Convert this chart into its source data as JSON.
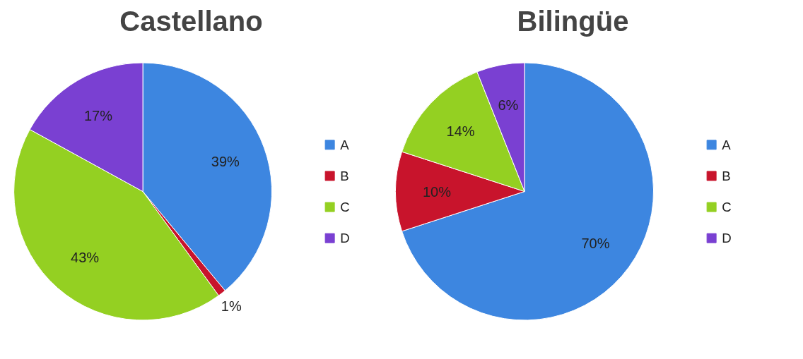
{
  "chart_data": [
    {
      "type": "pie",
      "title": "Castellano",
      "categories": [
        "A",
        "B",
        "C",
        "D"
      ],
      "values": [
        39,
        1,
        43,
        17
      ],
      "colors": [
        "#3d86e0",
        "#c8142c",
        "#94d022",
        "#7a40d2"
      ],
      "value_labels": [
        "39%",
        "1%",
        "43%",
        "17%"
      ],
      "legend": "right"
    },
    {
      "type": "pie",
      "title": "Bilingüe",
      "categories": [
        "A",
        "B",
        "C",
        "D"
      ],
      "values": [
        70,
        10,
        14,
        6
      ],
      "colors": [
        "#3d86e0",
        "#c8142c",
        "#94d022",
        "#7a40d2"
      ],
      "value_labels": [
        "70%",
        "10%",
        "14%",
        "6%"
      ],
      "legend": "right"
    }
  ]
}
